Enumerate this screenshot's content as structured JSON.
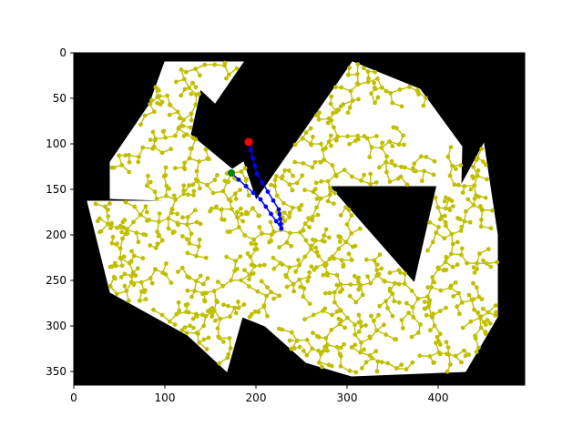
{
  "chart_data": {
    "type": "scatter",
    "title": "",
    "xlabel": "",
    "ylabel": "",
    "xlim": [
      0,
      495
    ],
    "ylim": [
      365,
      0
    ],
    "y_inverted": true,
    "grid": false,
    "legend": "none",
    "x_ticks": [
      0,
      100,
      200,
      300,
      400
    ],
    "y_ticks": [
      0,
      50,
      100,
      150,
      200,
      250,
      300,
      350
    ],
    "colors": {
      "obstacle": "#000000",
      "free_space": "#ffffff",
      "tree": "#bfbf00",
      "path": "#0000ff",
      "start": "#008000",
      "goal": "#ff0000"
    },
    "free_polygons": [
      [
        [
          100,
          10
        ],
        [
          186,
          10
        ],
        [
          155,
          55
        ],
        [
          139,
          40
        ],
        [
          128,
          90
        ],
        [
          100,
          60
        ],
        [
          83,
          57
        ]
      ],
      [
        [
          40,
          120
        ],
        [
          83,
          57
        ],
        [
          100,
          60
        ],
        [
          128,
          90
        ],
        [
          174,
          128
        ],
        [
          128,
          163
        ],
        [
          40,
          160
        ]
      ],
      [
        [
          200,
          162
        ],
        [
          306,
          10
        ],
        [
          380,
          40
        ],
        [
          426,
          103
        ],
        [
          425,
          146
        ],
        [
          280,
          146
        ],
        [
          215,
          215
        ],
        [
          186,
          120
        ]
      ],
      [
        [
          186,
          120
        ],
        [
          215,
          215
        ],
        [
          280,
          146
        ],
        [
          374,
          253
        ],
        [
          400,
          140
        ],
        [
          425,
          146
        ],
        [
          450,
          100
        ],
        [
          465,
          200
        ],
        [
          465,
          290
        ],
        [
          430,
          350
        ],
        [
          305,
          355
        ],
        [
          255,
          340
        ],
        [
          210,
          300
        ],
        [
          185,
          290
        ],
        [
          168,
          350
        ],
        [
          125,
          310
        ],
        [
          40,
          263
        ],
        [
          15,
          163
        ],
        [
          128,
          163
        ],
        [
          174,
          128
        ]
      ]
    ],
    "tree_root": [
      173,
      132
    ],
    "path": [
      [
        173,
        132
      ],
      [
        205,
        161
      ],
      [
        228,
        193
      ],
      [
        225,
        172
      ],
      [
        201,
        133
      ],
      [
        192,
        98
      ]
    ],
    "start": [
      173,
      132
    ],
    "goal": [
      192,
      98
    ]
  }
}
